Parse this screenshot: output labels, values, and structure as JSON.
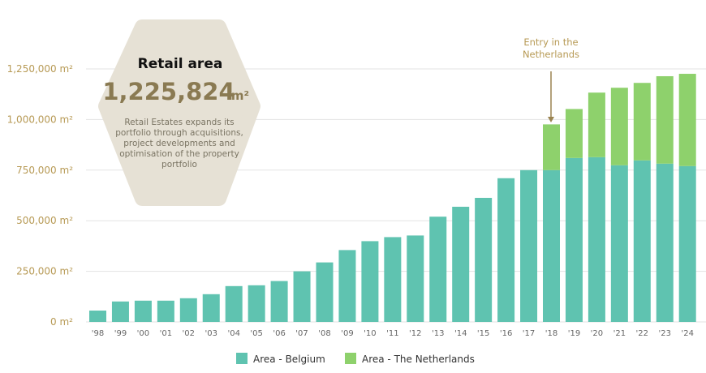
{
  "info_box": {
    "title": "Retail area",
    "value": "1,225,824",
    "unit": "m²",
    "description": [
      "Retail Estates expands its",
      "portfolio through acquisitions,",
      "project developments and",
      "optimisation of the property",
      "portfolio"
    ]
  },
  "annotation": {
    "lines": [
      "Entry in the",
      "Netherlands"
    ],
    "category": "'18"
  },
  "colors": {
    "belgium": "#5fc3b0",
    "netherlands": "#8ed16c",
    "axis_text": "#b79a55",
    "hexagon": "#e6e1d5",
    "grid": "#e3e3e3"
  },
  "chart_data": {
    "type": "bar",
    "stacked": true,
    "title": "Retail area",
    "xlabel": "",
    "ylabel": "",
    "ylim": [
      0,
      1250000
    ],
    "yticks": [
      0,
      250000,
      500000,
      750000,
      1000000,
      1250000
    ],
    "ytick_labels": [
      "0 m²",
      "250,000 m²",
      "500,000 m²",
      "750,000 m²",
      "1,000,000 m²",
      "1,250,000 m²"
    ],
    "grid": true,
    "legend_position": "bottom-center",
    "categories": [
      "'98",
      "'99",
      "'00",
      "'01",
      "'02",
      "'03",
      "'04",
      "'05",
      "'06",
      "'07",
      "'08",
      "'09",
      "'10",
      "'11",
      "'12",
      "'13",
      "'14",
      "'15",
      "'16",
      "'17",
      "'18",
      "'19",
      "'20",
      "'21",
      "'22",
      "'23",
      "'24"
    ],
    "series": [
      {
        "name": "Area - Belgium",
        "values": [
          56000,
          101000,
          105000,
          105000,
          117000,
          137000,
          177000,
          181000,
          202000,
          250000,
          294000,
          355000,
          399000,
          419000,
          427000,
          520000,
          569000,
          613000,
          710000,
          750000,
          750000,
          810000,
          814000,
          774000,
          798000,
          782000,
          770000
        ]
      },
      {
        "name": "Area - The Netherlands",
        "values": [
          0,
          0,
          0,
          0,
          0,
          0,
          0,
          0,
          0,
          0,
          0,
          0,
          0,
          0,
          0,
          0,
          0,
          0,
          0,
          0,
          226000,
          242000,
          319000,
          383000,
          383000,
          432000,
          455824
        ]
      }
    ]
  }
}
